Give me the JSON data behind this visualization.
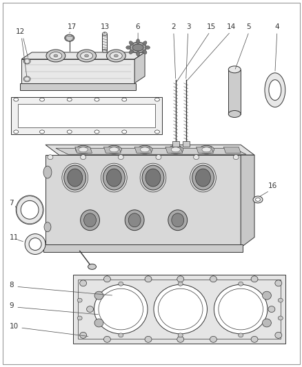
{
  "background_color": "#ffffff",
  "line_color": "#333333",
  "fig_width": 4.39,
  "fig_height": 5.33,
  "dpi": 100,
  "label_fontsize": 7.5,
  "label_color": "#333333",
  "gray_fill": "#e8e8e8",
  "gray_mid": "#cccccc",
  "gray_dark": "#aaaaaa",
  "white": "#ffffff"
}
